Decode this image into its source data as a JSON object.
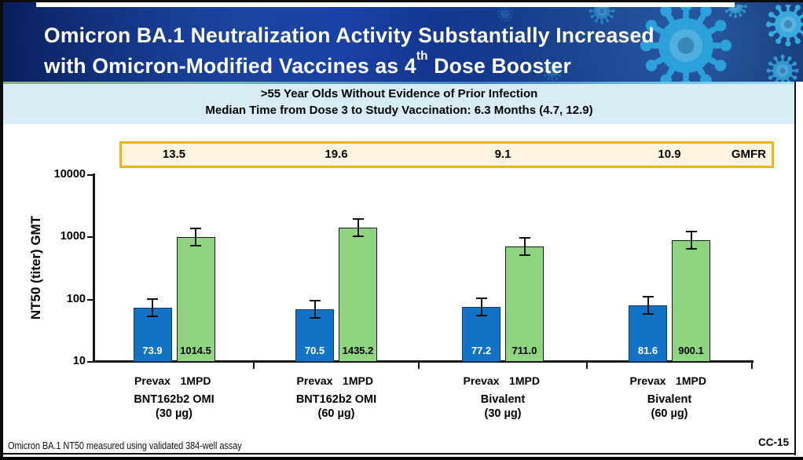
{
  "header": {
    "title_line1": "Omicron BA.1 Neutralization Activity Substantially Increased",
    "title_line2_pre": "with Omicron-Modified Vaccines as 4",
    "title_line2_sup": "th",
    "title_line2_post": " Dose Booster"
  },
  "subtitle": {
    "line1": ">55 Year Olds Without Evidence of Prior Infection",
    "line2": "Median Time from Dose 3 to Study Vaccination: 6.3 Months (4.7, 12.9)"
  },
  "gmfr": {
    "label": "GMFR",
    "values": [
      "13.5",
      "19.6",
      "9.1",
      "10.9"
    ]
  },
  "chart_data": {
    "type": "bar",
    "y_scale": "log",
    "ylabel": "NT50 (titer) GMT",
    "ylim": [
      10,
      10000
    ],
    "y_ticks": [
      10,
      100,
      1000,
      10000
    ],
    "y_tick_labels": [
      "10",
      "100",
      "1000",
      "10000"
    ],
    "error_bars": true,
    "grid": false,
    "groups": [
      {
        "line1": "BNT162b2 OMI",
        "line2": "(30 µg)"
      },
      {
        "line1": "BNT162b2 OMI",
        "line2": "(60 µg)"
      },
      {
        "line1": "Bivalent",
        "line2": "(30 µg)"
      },
      {
        "line1": "Bivalent",
        "line2": "(60 µg)"
      }
    ],
    "series": [
      {
        "name": "Prevax",
        "color": "#1273C6",
        "border_color": "#0a3d73",
        "label_color": "#ffffff",
        "values": [
          73.9,
          70.5,
          77.2,
          81.6
        ],
        "value_labels": [
          "73.9",
          "70.5",
          "77.2",
          "81.6"
        ]
      },
      {
        "name": "1MPD",
        "color": "#8FD480",
        "border_color": "#1a1a1a",
        "label_color": "#000000",
        "values": [
          1014.5,
          1435.2,
          711.0,
          900.1
        ],
        "value_labels": [
          "1014.5",
          "1435.2",
          "711.0",
          "900.1"
        ]
      }
    ],
    "gmfr_values": [
      13.5,
      19.6,
      9.1,
      10.9
    ]
  },
  "footer": {
    "footnote": "Omicron BA.1 NT50 measured using validated 384-well assay",
    "slide_code": "CC-15"
  },
  "colors": {
    "bar_prevax": "#1273C6",
    "bar_1mpd": "#8FD480",
    "banner_navy": "#0E2B7A",
    "virus_cyan": "#2DA5DE",
    "subtitle_band": "#D7ECF5",
    "gmfr_bg": "#FDF4E0",
    "gmfr_border": "#F2B41E"
  }
}
